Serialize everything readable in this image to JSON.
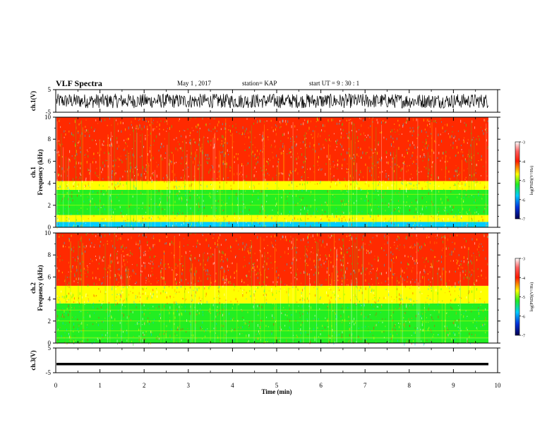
{
  "header": {
    "title": "VLF Spectra",
    "date": "May 1 , 2017",
    "station": "station= KAP",
    "start_ut": "start UT = 9 : 30 : 1"
  },
  "colorbar": {
    "label": "log(PSD)(V²/Hz)",
    "ticks": [
      "-3",
      "-4",
      "-5",
      "-6",
      "-7"
    ]
  },
  "colors": {
    "red": "#ff2a00",
    "orange": "#ff8800",
    "yellow": "#ffff00",
    "green": "#22ee22",
    "cyan": "#00ccff",
    "blue": "#0033dd",
    "navy": "#000060"
  },
  "chart_data": [
    {
      "type": "line",
      "ylabel": "ch.1(V)",
      "ylim": [
        -5,
        5
      ],
      "yticks": [
        "5",
        "-5"
      ],
      "x_range_min": [
        0,
        9.8
      ],
      "description": "dense noisy waveform, amplitude about ±3 V"
    },
    {
      "type": "heatmap",
      "ylabel": "ch.1 Frequency (kHz)",
      "ylim": [
        0,
        10
      ],
      "yticks": [
        "0",
        "2",
        "4",
        "6",
        "8",
        "10"
      ],
      "x_range_min": [
        0,
        9.8
      ],
      "bands": [
        {
          "f": [
            0.0,
            0.5
          ],
          "color": "cyan"
        },
        {
          "f": [
            0.5,
            1.1
          ],
          "color": "yellow"
        },
        {
          "f": [
            1.1,
            3.4
          ],
          "color": "green"
        },
        {
          "f": [
            3.4,
            4.2
          ],
          "color": "yellow"
        },
        {
          "f": [
            4.2,
            10.0
          ],
          "color": "red"
        }
      ],
      "colorbar_range": [
        -7,
        -3
      ]
    },
    {
      "type": "heatmap",
      "ylabel": "ch.2 Frequency (kHz)",
      "ylim": [
        0,
        10
      ],
      "yticks": [
        "0",
        "2",
        "4",
        "6",
        "8",
        "10"
      ],
      "x_range_min": [
        0,
        9.8
      ],
      "bands": [
        {
          "f": [
            0.0,
            0.4
          ],
          "color": "green"
        },
        {
          "f": [
            0.4,
            3.6
          ],
          "color": "green"
        },
        {
          "f": [
            3.6,
            5.2
          ],
          "color": "yellow"
        },
        {
          "f": [
            5.2,
            10.0
          ],
          "color": "red"
        }
      ],
      "colorbar_range": [
        -7,
        -3
      ]
    },
    {
      "type": "line",
      "ylabel": "ch.3(V)",
      "ylim": [
        -5,
        5
      ],
      "yticks": [
        "5",
        "-5"
      ],
      "x_range_min": [
        0,
        9.8
      ],
      "values_constant": -1.5,
      "description": "flat line near -1.5 V"
    }
  ],
  "xaxis": {
    "label": "Time (min)",
    "ticks": [
      "0",
      "1",
      "2",
      "3",
      "4",
      "5",
      "6",
      "7",
      "8",
      "9",
      "10"
    ],
    "xlim": [
      0,
      10
    ]
  }
}
